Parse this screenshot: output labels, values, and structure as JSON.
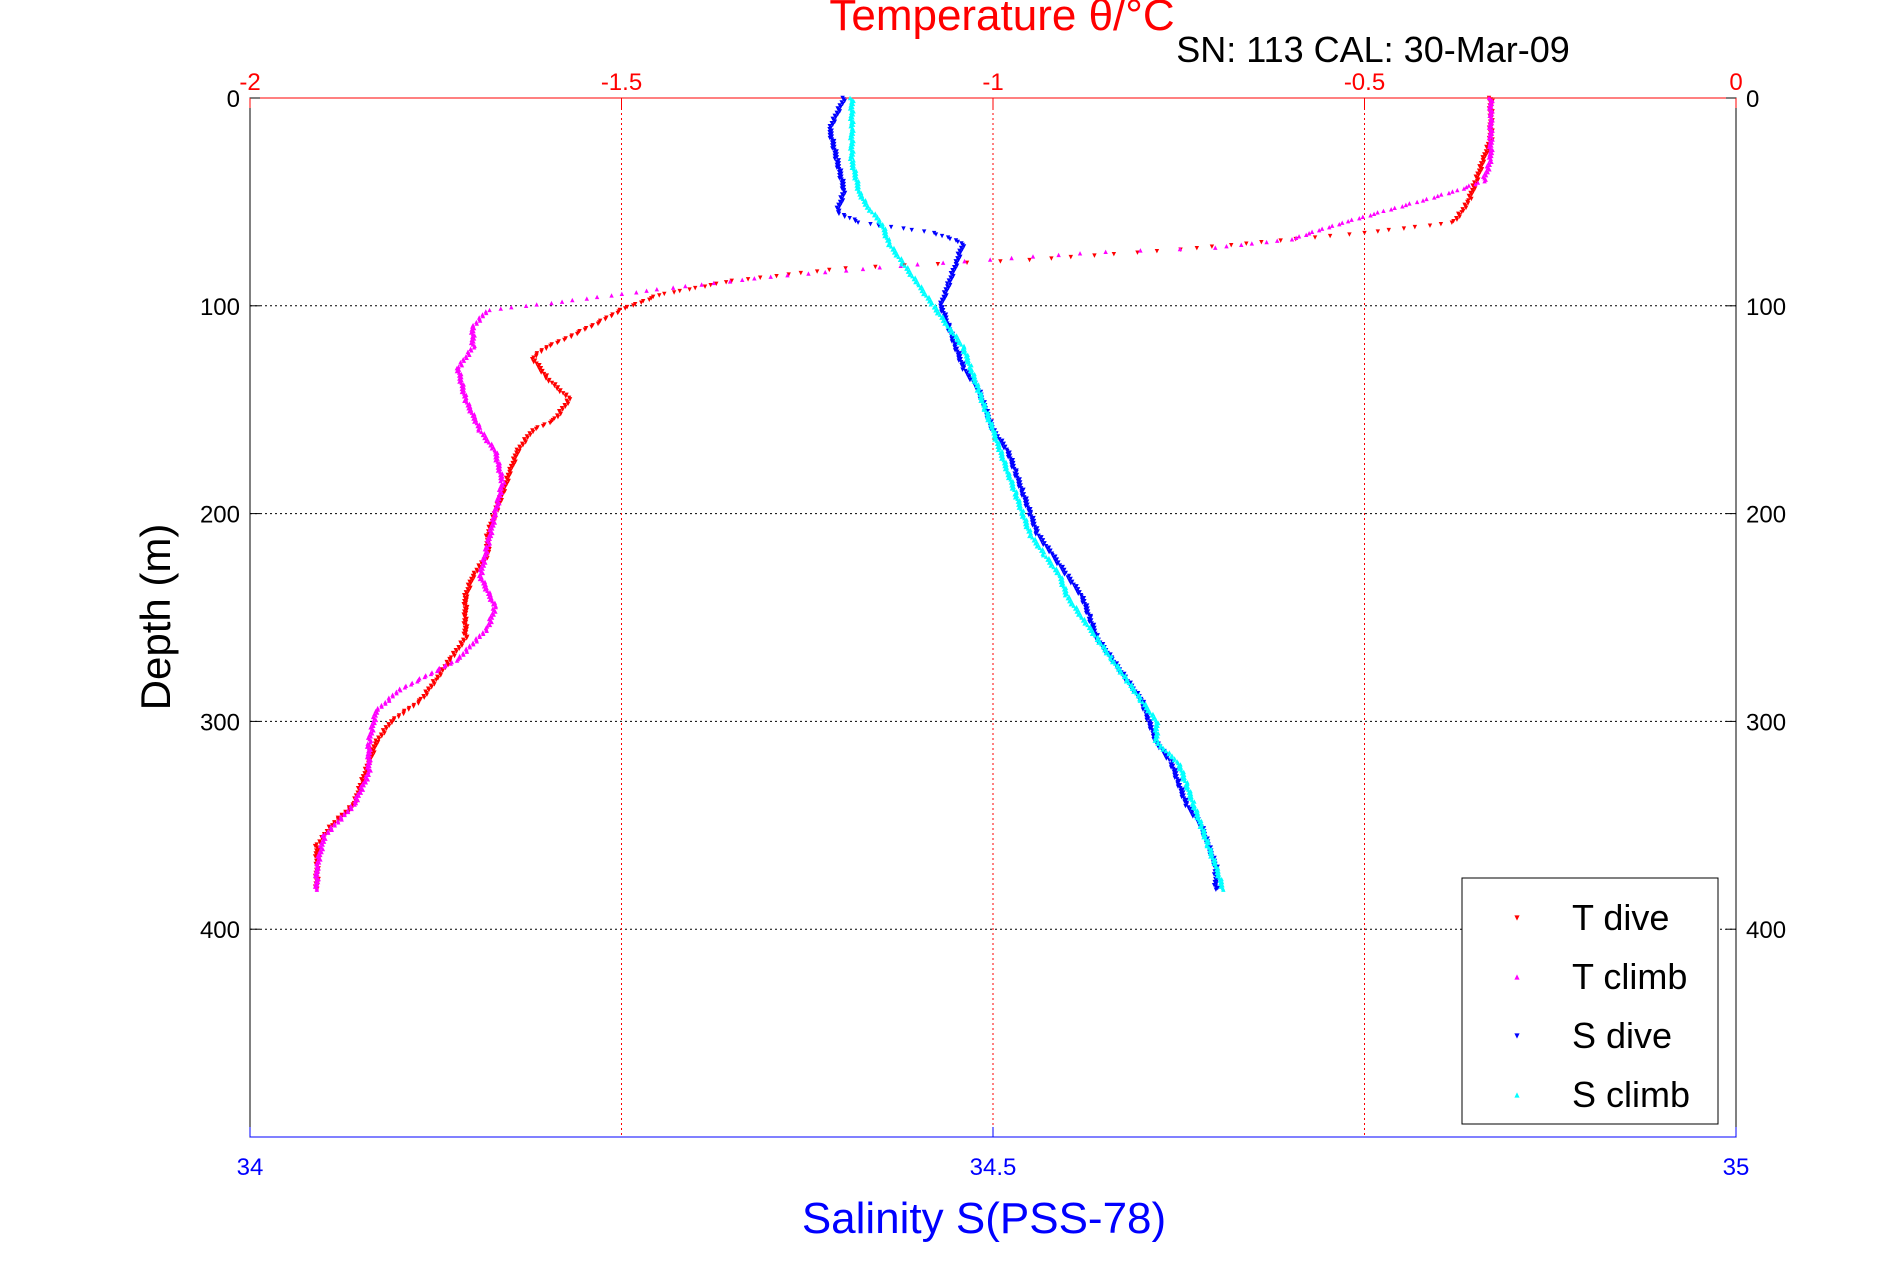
{
  "chart_data": {
    "type": "scatter",
    "title": "Temperature θ/°C",
    "annotation": "SN: 113  CAL: 30-Mar-09",
    "ylabel": "Depth (m)",
    "xlabel_bottom": "Salinity S(PSS-78)",
    "xlabel_top": "Temperature θ/°C",
    "ylim": [
      0,
      500
    ],
    "y_reversed": true,
    "y_ticks": [
      "0",
      "100",
      "200",
      "300",
      "400"
    ],
    "x_bottom": {
      "lim": [
        34,
        35
      ],
      "ticks": [
        "34",
        "34.5",
        "35"
      ],
      "color": "#0000ff"
    },
    "x_top": {
      "lim": [
        -2,
        0
      ],
      "ticks": [
        "-2",
        "-1.5",
        "-1",
        "-0.5",
        "0"
      ],
      "color": "#ff0000"
    },
    "grid": true,
    "legend_position": "bottom-right",
    "series": [
      {
        "name": "T dive",
        "axis": "temperature",
        "color": "#ff0000",
        "marker": "triangle-down",
        "points": [
          [
            -0.33,
            0
          ],
          [
            -0.33,
            10
          ],
          [
            -0.33,
            20
          ],
          [
            -0.34,
            30
          ],
          [
            -0.35,
            40
          ],
          [
            -0.36,
            50
          ],
          [
            -0.37,
            55
          ],
          [
            -0.38,
            60
          ],
          [
            -0.5,
            65
          ],
          [
            -0.75,
            73
          ],
          [
            -0.95,
            78
          ],
          [
            -1.2,
            82
          ],
          [
            -1.35,
            88
          ],
          [
            -1.45,
            95
          ],
          [
            -1.5,
            102
          ],
          [
            -1.53,
            108
          ],
          [
            -1.57,
            115
          ],
          [
            -1.6,
            120
          ],
          [
            -1.62,
            125
          ],
          [
            -1.6,
            135
          ],
          [
            -1.57,
            145
          ],
          [
            -1.59,
            155
          ],
          [
            -1.62,
            160
          ],
          [
            -1.64,
            170
          ],
          [
            -1.65,
            180
          ],
          [
            -1.66,
            190
          ],
          [
            -1.67,
            200
          ],
          [
            -1.68,
            210
          ],
          [
            -1.68,
            220
          ],
          [
            -1.7,
            230
          ],
          [
            -1.71,
            240
          ],
          [
            -1.71,
            250
          ],
          [
            -1.71,
            260
          ],
          [
            -1.73,
            270
          ],
          [
            -1.75,
            280
          ],
          [
            -1.77,
            290
          ],
          [
            -1.81,
            300
          ],
          [
            -1.83,
            310
          ],
          [
            -1.84,
            320
          ],
          [
            -1.85,
            330
          ],
          [
            -1.86,
            340
          ],
          [
            -1.89,
            350
          ],
          [
            -1.91,
            360
          ],
          [
            -1.91,
            370
          ],
          [
            -1.91,
            381
          ]
        ]
      },
      {
        "name": "T climb",
        "axis": "temperature",
        "color": "#ff00ff",
        "marker": "triangle-up",
        "points": [
          [
            -0.33,
            0
          ],
          [
            -0.33,
            10
          ],
          [
            -0.33,
            20
          ],
          [
            -0.33,
            30
          ],
          [
            -0.34,
            40
          ],
          [
            -0.38,
            45
          ],
          [
            -0.43,
            50
          ],
          [
            -0.48,
            55
          ],
          [
            -0.53,
            60
          ],
          [
            -0.6,
            68
          ],
          [
            -0.7,
            72
          ],
          [
            -0.85,
            74
          ],
          [
            -1.1,
            80
          ],
          [
            -1.3,
            86
          ],
          [
            -1.45,
            92
          ],
          [
            -1.58,
            98
          ],
          [
            -1.68,
            102
          ],
          [
            -1.7,
            110
          ],
          [
            -1.7,
            120
          ],
          [
            -1.72,
            130
          ],
          [
            -1.71,
            145
          ],
          [
            -1.69,
            160
          ],
          [
            -1.67,
            170
          ],
          [
            -1.66,
            185
          ],
          [
            -1.67,
            200
          ],
          [
            -1.68,
            215
          ],
          [
            -1.69,
            230
          ],
          [
            -1.67,
            245
          ],
          [
            -1.68,
            255
          ],
          [
            -1.72,
            270
          ],
          [
            -1.8,
            285
          ],
          [
            -1.83,
            295
          ],
          [
            -1.84,
            310
          ],
          [
            -1.84,
            325
          ],
          [
            -1.86,
            340
          ],
          [
            -1.9,
            355
          ],
          [
            -1.91,
            370
          ],
          [
            -1.91,
            381
          ]
        ]
      },
      {
        "name": "S dive",
        "axis": "salinity",
        "color": "#0000ff",
        "marker": "triangle-down",
        "points": [
          [
            34.4,
            0
          ],
          [
            34.39,
            15
          ],
          [
            34.395,
            30
          ],
          [
            34.4,
            45
          ],
          [
            34.395,
            55
          ],
          [
            34.41,
            60
          ],
          [
            34.46,
            65
          ],
          [
            34.48,
            70
          ],
          [
            34.475,
            80
          ],
          [
            34.47,
            90
          ],
          [
            34.465,
            100
          ],
          [
            34.47,
            110
          ],
          [
            34.475,
            120
          ],
          [
            34.48,
            130
          ],
          [
            34.49,
            140
          ],
          [
            34.495,
            150
          ],
          [
            34.5,
            160
          ],
          [
            34.51,
            170
          ],
          [
            34.515,
            180
          ],
          [
            34.52,
            190
          ],
          [
            34.525,
            200
          ],
          [
            34.53,
            210
          ],
          [
            34.54,
            220
          ],
          [
            34.55,
            230
          ],
          [
            34.56,
            240
          ],
          [
            34.565,
            250
          ],
          [
            34.57,
            260
          ],
          [
            34.58,
            270
          ],
          [
            34.59,
            280
          ],
          [
            34.6,
            290
          ],
          [
            34.605,
            300
          ],
          [
            34.61,
            310
          ],
          [
            34.62,
            320
          ],
          [
            34.625,
            330
          ],
          [
            34.63,
            340
          ],
          [
            34.64,
            350
          ],
          [
            34.645,
            360
          ],
          [
            34.65,
            370
          ],
          [
            34.65,
            381
          ]
        ]
      },
      {
        "name": "S climb",
        "axis": "salinity",
        "color": "#00ffff",
        "marker": "triangle-up",
        "points": [
          [
            34.405,
            0
          ],
          [
            34.405,
            15
          ],
          [
            34.405,
            30
          ],
          [
            34.41,
            45
          ],
          [
            34.415,
            52
          ],
          [
            34.425,
            60
          ],
          [
            34.43,
            70
          ],
          [
            34.44,
            80
          ],
          [
            34.45,
            90
          ],
          [
            34.46,
            100
          ],
          [
            34.47,
            110
          ],
          [
            34.48,
            120
          ],
          [
            34.485,
            130
          ],
          [
            34.49,
            140
          ],
          [
            34.495,
            150
          ],
          [
            34.5,
            160
          ],
          [
            34.505,
            170
          ],
          [
            34.51,
            180
          ],
          [
            34.515,
            190
          ],
          [
            34.52,
            200
          ],
          [
            34.525,
            210
          ],
          [
            34.535,
            220
          ],
          [
            34.545,
            230
          ],
          [
            34.55,
            240
          ],
          [
            34.56,
            250
          ],
          [
            34.57,
            260
          ],
          [
            34.58,
            270
          ],
          [
            34.59,
            280
          ],
          [
            34.6,
            290
          ],
          [
            34.61,
            300
          ],
          [
            34.61,
            310
          ],
          [
            34.625,
            320
          ],
          [
            34.63,
            330
          ],
          [
            34.635,
            340
          ],
          [
            34.64,
            350
          ],
          [
            34.645,
            360
          ],
          [
            34.65,
            370
          ],
          [
            34.655,
            381
          ]
        ]
      }
    ]
  }
}
